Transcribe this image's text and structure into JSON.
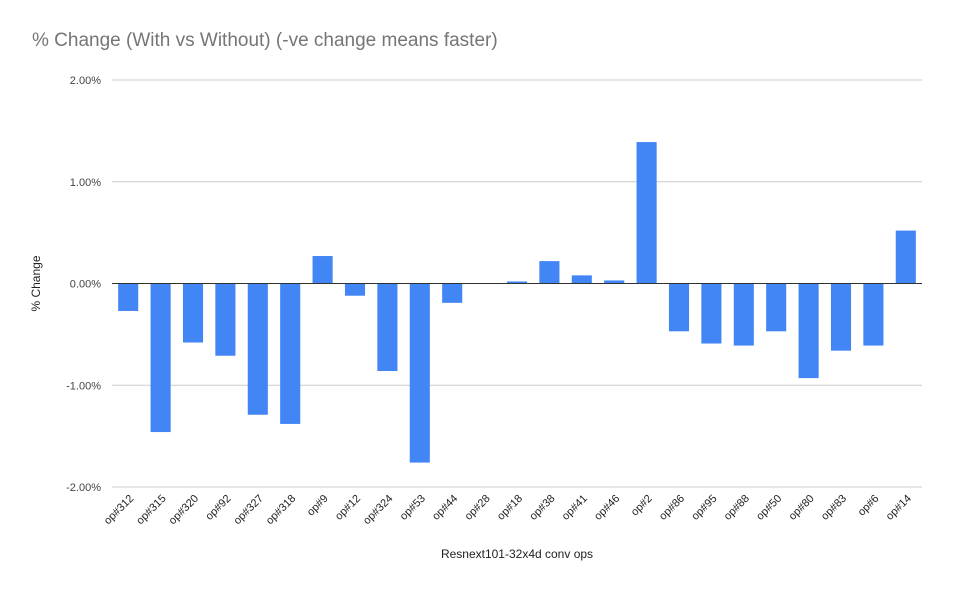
{
  "chart_data": {
    "type": "bar",
    "title": "% Change (With vs Without) (-ve change means faster)",
    "xlabel": "Resnext101-32x4d conv ops",
    "ylabel": "% Change",
    "ylim": [
      -2.0,
      2.0
    ],
    "yticks": [
      2.0,
      1.0,
      0.0,
      -1.0,
      -2.0
    ],
    "ytick_labels": [
      "2.00%",
      "1.00%",
      "0.00%",
      "-1.00%",
      "-2.00%"
    ],
    "grid": true,
    "legend": "none",
    "bar_color": "#4285f4",
    "categories": [
      "op#312",
      "op#315",
      "op#320",
      "op#92",
      "op#327",
      "op#318",
      "op#9",
      "op#12",
      "op#324",
      "op#53",
      "op#44",
      "op#28",
      "op#18",
      "op#38",
      "op#41",
      "op#46",
      "op#2",
      "op#86",
      "op#95",
      "op#88",
      "op#50",
      "op#80",
      "op#83",
      "op#6",
      "op#14"
    ],
    "values": [
      -0.27,
      -1.46,
      -0.58,
      -0.71,
      -1.29,
      -1.38,
      0.27,
      -0.12,
      -0.86,
      -1.76,
      -0.19,
      0.0,
      0.02,
      0.22,
      0.08,
      0.03,
      1.39,
      -0.47,
      -0.59,
      -0.61,
      -0.47,
      -0.93,
      -0.66,
      -0.61,
      0.52
    ]
  }
}
